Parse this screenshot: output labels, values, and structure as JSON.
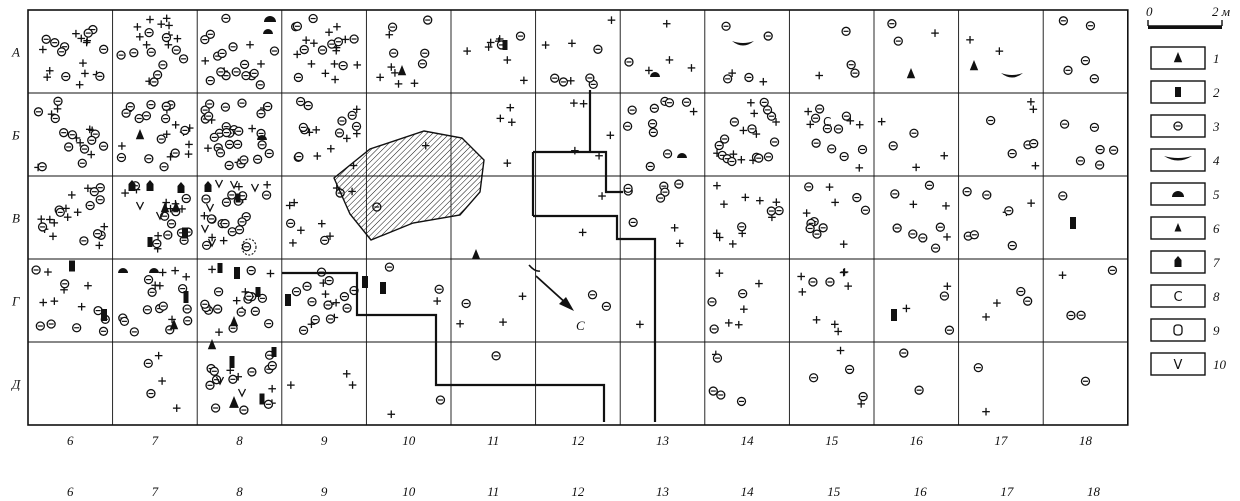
{
  "map": {
    "columns": [
      "6",
      "7",
      "8",
      "9",
      "10",
      "11",
      "12",
      "13",
      "14",
      "15",
      "16",
      "17",
      "18"
    ],
    "rows": [
      "А",
      "Б",
      "В",
      "Г",
      "Д"
    ],
    "bottom_numbers": [
      "6",
      "7",
      "8",
      "9",
      "10",
      "11",
      "12",
      "13",
      "14",
      "15",
      "16",
      "17",
      "18"
    ],
    "arrow_label": "С"
  },
  "scale_bar": {
    "start": "0",
    "end": "2 м"
  },
  "legend": [
    {
      "num": "1",
      "symbol": "triangle-solid"
    },
    {
      "num": "2",
      "symbol": "rect-solid"
    },
    {
      "num": "3",
      "symbol": "circle-minus"
    },
    {
      "num": "4",
      "symbol": "half-disc-large"
    },
    {
      "num": "5",
      "symbol": "half-disc-small"
    },
    {
      "num": "6",
      "symbol": "triangle-solid-small"
    },
    {
      "num": "7",
      "symbol": "house-solid"
    },
    {
      "num": "8",
      "symbol": "letter-c",
      "text": "С"
    },
    {
      "num": "9",
      "symbol": "open-oval"
    },
    {
      "num": "10",
      "symbol": "chevron-v",
      "text": "V"
    }
  ],
  "colors": {
    "ink": "#111111",
    "paper": "#ffffff"
  }
}
